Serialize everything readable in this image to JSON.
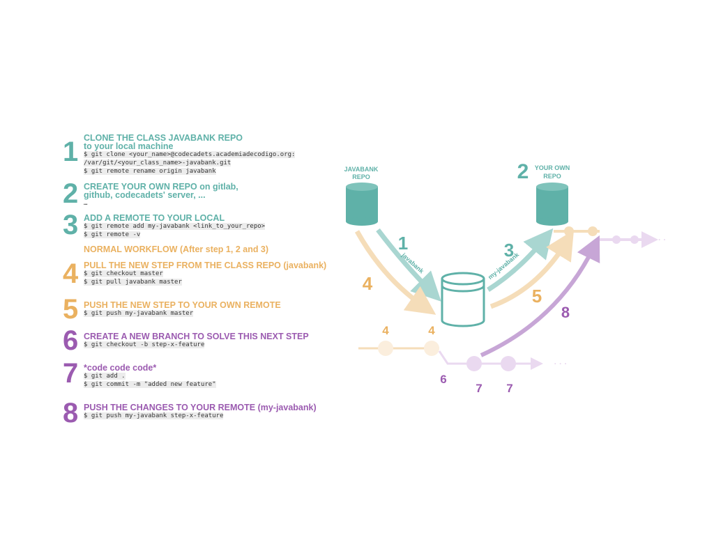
{
  "colors": {
    "teal": "#5fb1a8",
    "teal_light": "#a9d6d1",
    "orange": "#eab160",
    "orange_light": "#f5ddb9",
    "purple": "#9b5bb0",
    "purple_light": "#c7a6d6",
    "purple_pale": "#ead9f0"
  },
  "steps": [
    {
      "number": "1",
      "title": "CLONE THE CLASS JAVABANK REPO",
      "title2": "to your local machine",
      "lines": [
        "$ git clone <your_name>@codecadets.academiadecodigo.org:",
        "/var/git/<your_class_name>-javabank.git",
        "$ git remote rename origin javabank"
      ]
    },
    {
      "number": "2",
      "title": "CREATE YOUR OWN REPO on gitlab,",
      "title2": "github, codecadets' server, ...",
      "lines": [
        "…"
      ]
    },
    {
      "number": "3",
      "title": "ADD A REMOTE TO YOUR LOCAL",
      "lines": [
        "$ git remote add my-javabank <link_to_your_repo>",
        "$ git remote -v"
      ]
    },
    {
      "heading": "NORMAL WORKFLOW (After step 1, 2 and 3)"
    },
    {
      "number": "4",
      "title": "PULL THE NEW STEP FROM THE CLASS REPO (javabank)",
      "lines": [
        "$ git checkout master",
        "$ git pull javabank master"
      ]
    },
    {
      "number": "5",
      "title": "PUSH THE NEW STEP TO YOUR OWN REMOTE",
      "lines": [
        "$ git push my-javabank master"
      ]
    },
    {
      "number": "6",
      "title": "CREATE A NEW BRANCH TO SOLVE THIS NEXT STEP",
      "lines": [
        "$ git checkout -b step-x-feature"
      ]
    },
    {
      "number": "7",
      "title": "*code code code*",
      "lines": [
        "$ git add .",
        "$ git commit -m \"added new feature\""
      ]
    },
    {
      "number": "8",
      "title": "PUSH THE CHANGES TO YOUR REMOTE (my-javabank)",
      "lines": [
        "$ git push my-javabank step-x-feature"
      ]
    }
  ],
  "diagram": {
    "javabank_repo_label1": "JAVABANK",
    "javabank_repo_label2": "REPO",
    "own_repo_number": "2",
    "own_repo_label1": "YOUR OWN",
    "own_repo_label2": "REPO",
    "arrow1_num": "1",
    "arrow1_label": "javabank",
    "arrow3_num": "3",
    "arrow3_label": "my-javabank",
    "arrow4_num": "4",
    "arrow5_num": "5",
    "arrow8_num": "8",
    "commit_labels": {
      "c4a": "4",
      "c4b": "4",
      "c6": "6",
      "c7a": "7",
      "c7b": "7"
    },
    "ellipsis": "· · ·"
  }
}
